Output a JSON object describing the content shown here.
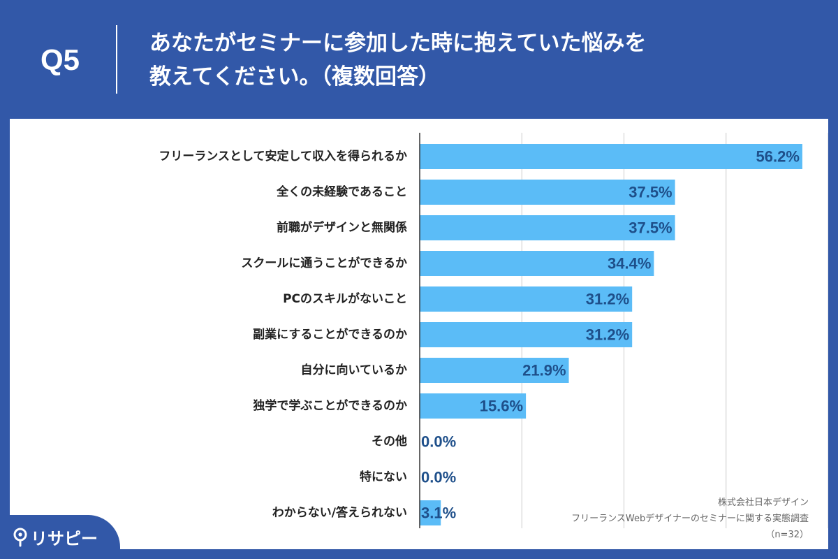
{
  "header": {
    "question_number": "Q5",
    "title_line1": "あなたがセミナーに参加した時に抱えていた悩みを",
    "title_line2": "教えてください。（複数回答）"
  },
  "source": {
    "company": "株式会社日本デザイン",
    "survey": "フリーランスWebデザイナーのセミナーに関する実態調査",
    "sample": "（n=32）"
  },
  "logo": {
    "text": "リサピー"
  },
  "colors": {
    "background": "#3258a8",
    "bar": "#5bbcf7",
    "value_label": "#1e4f8a"
  },
  "chart_data": {
    "type": "bar",
    "orientation": "horizontal",
    "categories": [
      "フリーランスとして安定して収入を得られるか",
      "全くの未経験であること",
      "前職がデザインと無関係",
      "スクールに通うことができるか",
      "PCのスキルがないこと",
      "副業にすることができるのか",
      "自分に向いているか",
      "独学で学ぶことができるのか",
      "その他",
      "特にない",
      "わからない/答えられない"
    ],
    "values": [
      56.2,
      37.5,
      37.5,
      34.4,
      31.2,
      31.2,
      21.9,
      15.6,
      0.0,
      0.0,
      3.1
    ],
    "labels": [
      "56.2%",
      "37.5%",
      "37.5%",
      "34.4%",
      "31.2%",
      "31.2%",
      "21.9%",
      "15.6%",
      "0.0%",
      "0.0%",
      "3.1%"
    ],
    "unit": "%",
    "xlim": [
      0,
      60
    ],
    "grid_step": 15,
    "grid": true,
    "title": "",
    "xlabel": "",
    "ylabel": ""
  }
}
